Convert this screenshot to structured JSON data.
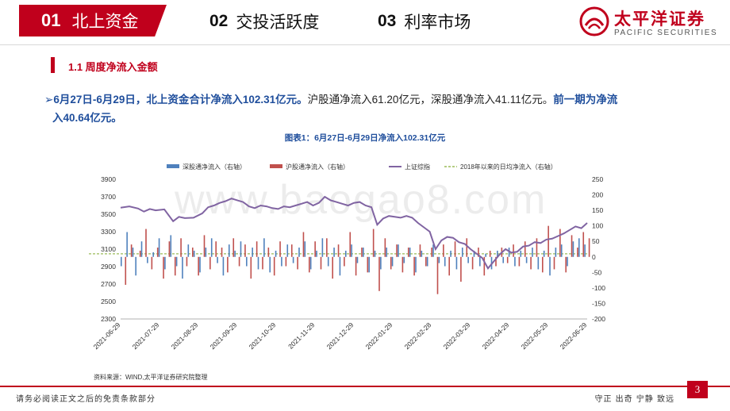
{
  "nav": {
    "tabs": [
      {
        "num": "01",
        "label": "北上资金"
      },
      {
        "num": "02",
        "label": "交投活跃度"
      },
      {
        "num": "03",
        "label": "利率市场"
      }
    ]
  },
  "brand": {
    "name_cn": "太平洋证券",
    "name_en": "PACIFIC SECURITIES"
  },
  "section": {
    "title": "1.1 周度净流入金额"
  },
  "summary": {
    "arrow": "➢",
    "part1": "6月27日-6月29日，北上资金合计净流入102.31亿元。",
    "part2": "沪股通净流入61.20亿元，深股通净流入41.11亿元。",
    "part3": "前一期为净流",
    "part4": "入40.64亿元。"
  },
  "chart_title": "图表1：6月27日-6月29日净流入102.31亿元",
  "source": "资料来源：WIND,太平洋证券研究院整理",
  "watermark": "www.baogao8.com",
  "footer": {
    "left": "请务必阅读正文之后的免责条款部分",
    "right": "守正  出奇  宁静  致远",
    "page": "3"
  },
  "colors": {
    "brand_red": "#c0001c",
    "sz_bar": "#4f81bd",
    "sh_bar": "#c0504d",
    "index_line": "#8064a2",
    "avg_line": "#9bbb59"
  },
  "chart_data": {
    "type": "bar+line",
    "legend": [
      {
        "name": "深股通净流入（右轴）",
        "kind": "bar",
        "color": "#4f81bd"
      },
      {
        "name": "沪股通净流入（右轴）",
        "kind": "bar",
        "color": "#c0504d"
      },
      {
        "name": "上证综指",
        "kind": "line",
        "color": "#8064a2"
      },
      {
        "name": "2018年以来的日均净流入（右轴）",
        "kind": "dash",
        "color": "#9bbb59"
      }
    ],
    "legend_position": "top",
    "left_axis": {
      "min": 2300,
      "max": 3900,
      "step": 200,
      "ticks": [
        3900,
        3700,
        3500,
        3300,
        3100,
        2900,
        2700,
        2500,
        2300
      ]
    },
    "right_axis": {
      "min": -200,
      "max": 250,
      "step": 50,
      "ticks": [
        250,
        200,
        150,
        100,
        50,
        0,
        -50,
        -100,
        -150,
        -200
      ]
    },
    "x_ticks": [
      "2021-06-29",
      "2021-07-29",
      "2021-08-29",
      "2021-09-29",
      "2021-10-29",
      "2021-11-29",
      "2021-12-29",
      "2022-01-29",
      "2022-02-28",
      "2022-03-29",
      "2022-04-29",
      "2022-05-29",
      "2022-06-29"
    ],
    "avg_daily_inflow": 10,
    "index_series": [
      [
        0,
        3575
      ],
      [
        3,
        3590
      ],
      [
        6,
        3565
      ],
      [
        8,
        3530
      ],
      [
        10,
        3560
      ],
      [
        12,
        3545
      ],
      [
        15,
        3555
      ],
      [
        18,
        3420
      ],
      [
        20,
        3470
      ],
      [
        22,
        3455
      ],
      [
        25,
        3460
      ],
      [
        28,
        3510
      ],
      [
        30,
        3580
      ],
      [
        32,
        3600
      ],
      [
        34,
        3630
      ],
      [
        36,
        3650
      ],
      [
        38,
        3680
      ],
      [
        40,
        3660
      ],
      [
        42,
        3640
      ],
      [
        44,
        3590
      ],
      [
        46,
        3570
      ],
      [
        48,
        3600
      ],
      [
        50,
        3590
      ],
      [
        52,
        3570
      ],
      [
        54,
        3560
      ],
      [
        56,
        3590
      ],
      [
        58,
        3580
      ],
      [
        60,
        3600
      ],
      [
        62,
        3620
      ],
      [
        64,
        3640
      ],
      [
        66,
        3600
      ],
      [
        68,
        3630
      ],
      [
        70,
        3700
      ],
      [
        72,
        3660
      ],
      [
        74,
        3640
      ],
      [
        76,
        3620
      ],
      [
        78,
        3600
      ],
      [
        80,
        3630
      ],
      [
        82,
        3640
      ],
      [
        84,
        3600
      ],
      [
        86,
        3580
      ],
      [
        88,
        3380
      ],
      [
        90,
        3450
      ],
      [
        92,
        3480
      ],
      [
        94,
        3470
      ],
      [
        96,
        3460
      ],
      [
        98,
        3480
      ],
      [
        100,
        3460
      ],
      [
        102,
        3400
      ],
      [
        104,
        3350
      ],
      [
        106,
        3300
      ],
      [
        108,
        3100
      ],
      [
        110,
        3200
      ],
      [
        112,
        3240
      ],
      [
        114,
        3230
      ],
      [
        116,
        3180
      ],
      [
        118,
        3160
      ],
      [
        120,
        3100
      ],
      [
        122,
        3050
      ],
      [
        124,
        3000
      ],
      [
        126,
        2880
      ],
      [
        128,
        2960
      ],
      [
        130,
        3040
      ],
      [
        132,
        3100
      ],
      [
        134,
        3060
      ],
      [
        136,
        3070
      ],
      [
        138,
        3130
      ],
      [
        140,
        3140
      ],
      [
        142,
        3180
      ],
      [
        144,
        3170
      ],
      [
        146,
        3210
      ],
      [
        148,
        3220
      ],
      [
        150,
        3250
      ],
      [
        152,
        3280
      ],
      [
        154,
        3320
      ],
      [
        156,
        3360
      ],
      [
        158,
        3340
      ],
      [
        160,
        3400
      ]
    ],
    "sz_values": [
      [
        0,
        -30
      ],
      [
        2,
        80
      ],
      [
        4,
        30
      ],
      [
        5,
        -60
      ],
      [
        7,
        50
      ],
      [
        9,
        -20
      ],
      [
        11,
        15
      ],
      [
        13,
        60
      ],
      [
        15,
        -40
      ],
      [
        17,
        70
      ],
      [
        19,
        -30
      ],
      [
        21,
        -70
      ],
      [
        23,
        40
      ],
      [
        25,
        20
      ],
      [
        27,
        -50
      ],
      [
        29,
        30
      ],
      [
        31,
        60
      ],
      [
        33,
        -20
      ],
      [
        35,
        -60
      ],
      [
        37,
        40
      ],
      [
        39,
        20
      ],
      [
        41,
        50
      ],
      [
        43,
        -30
      ],
      [
        45,
        30
      ],
      [
        47,
        -40
      ],
      [
        49,
        60
      ],
      [
        51,
        -50
      ],
      [
        53,
        20
      ],
      [
        55,
        -30
      ],
      [
        57,
        40
      ],
      [
        59,
        -20
      ],
      [
        61,
        30
      ],
      [
        63,
        50
      ],
      [
        65,
        -40
      ],
      [
        67,
        20
      ],
      [
        69,
        60
      ],
      [
        71,
        -30
      ],
      [
        73,
        30
      ],
      [
        75,
        -60
      ],
      [
        77,
        20
      ],
      [
        79,
        40
      ],
      [
        81,
        -20
      ],
      [
        83,
        30
      ],
      [
        85,
        -50
      ],
      [
        87,
        20
      ],
      [
        89,
        -40
      ],
      [
        91,
        30
      ],
      [
        93,
        -30
      ],
      [
        95,
        40
      ],
      [
        97,
        -20
      ],
      [
        99,
        30
      ],
      [
        101,
        -50
      ],
      [
        103,
        20
      ],
      [
        105,
        -30
      ],
      [
        107,
        40
      ],
      [
        109,
        -20
      ],
      [
        111,
        -30
      ],
      [
        113,
        20
      ],
      [
        115,
        -40
      ],
      [
        117,
        30
      ],
      [
        119,
        -20
      ],
      [
        121,
        20
      ],
      [
        123,
        -30
      ],
      [
        125,
        10
      ],
      [
        127,
        -40
      ],
      [
        129,
        20
      ],
      [
        131,
        -20
      ],
      [
        133,
        30
      ],
      [
        135,
        -30
      ],
      [
        137,
        20
      ],
      [
        139,
        -20
      ],
      [
        141,
        30
      ],
      [
        143,
        -40
      ],
      [
        145,
        20
      ],
      [
        147,
        -60
      ],
      [
        149,
        30
      ],
      [
        151,
        40
      ],
      [
        153,
        -30
      ],
      [
        155,
        50
      ],
      [
        157,
        60
      ],
      [
        159,
        40
      ]
    ],
    "sh_values": [
      [
        1,
        -90
      ],
      [
        3,
        40
      ],
      [
        6,
        20
      ],
      [
        8,
        90
      ],
      [
        10,
        -40
      ],
      [
        12,
        30
      ],
      [
        14,
        -70
      ],
      [
        16,
        50
      ],
      [
        18,
        -60
      ],
      [
        20,
        60
      ],
      [
        22,
        -30
      ],
      [
        24,
        30
      ],
      [
        26,
        -60
      ],
      [
        28,
        70
      ],
      [
        30,
        -40
      ],
      [
        32,
        50
      ],
      [
        34,
        30
      ],
      [
        36,
        -50
      ],
      [
        38,
        60
      ],
      [
        40,
        -30
      ],
      [
        42,
        40
      ],
      [
        44,
        -70
      ],
      [
        46,
        50
      ],
      [
        48,
        -40
      ],
      [
        50,
        30
      ],
      [
        52,
        -60
      ],
      [
        54,
        50
      ],
      [
        56,
        -30
      ],
      [
        58,
        40
      ],
      [
        60,
        -40
      ],
      [
        62,
        80
      ],
      [
        64,
        -50
      ],
      [
        66,
        50
      ],
      [
        68,
        -40
      ],
      [
        70,
        60
      ],
      [
        72,
        -70
      ],
      [
        74,
        40
      ],
      [
        76,
        -30
      ],
      [
        78,
        80
      ],
      [
        80,
        -60
      ],
      [
        82,
        30
      ],
      [
        84,
        -50
      ],
      [
        86,
        90
      ],
      [
        88,
        -110
      ],
      [
        90,
        60
      ],
      [
        92,
        -40
      ],
      [
        94,
        40
      ],
      [
        96,
        -50
      ],
      [
        98,
        30
      ],
      [
        100,
        -60
      ],
      [
        102,
        40
      ],
      [
        104,
        -30
      ],
      [
        106,
        30
      ],
      [
        108,
        -120
      ],
      [
        110,
        40
      ],
      [
        112,
        -60
      ],
      [
        114,
        50
      ],
      [
        116,
        -80
      ],
      [
        118,
        60
      ],
      [
        120,
        -40
      ],
      [
        122,
        30
      ],
      [
        124,
        -60
      ],
      [
        126,
        20
      ],
      [
        128,
        -30
      ],
      [
        130,
        30
      ],
      [
        132,
        -20
      ],
      [
        134,
        40
      ],
      [
        136,
        -30
      ],
      [
        138,
        50
      ],
      [
        140,
        -40
      ],
      [
        142,
        60
      ],
      [
        144,
        -50
      ],
      [
        146,
        100
      ],
      [
        148,
        -40
      ],
      [
        150,
        90
      ],
      [
        152,
        -50
      ],
      [
        154,
        70
      ],
      [
        156,
        30
      ],
      [
        158,
        80
      ],
      [
        160,
        60
      ]
    ]
  }
}
